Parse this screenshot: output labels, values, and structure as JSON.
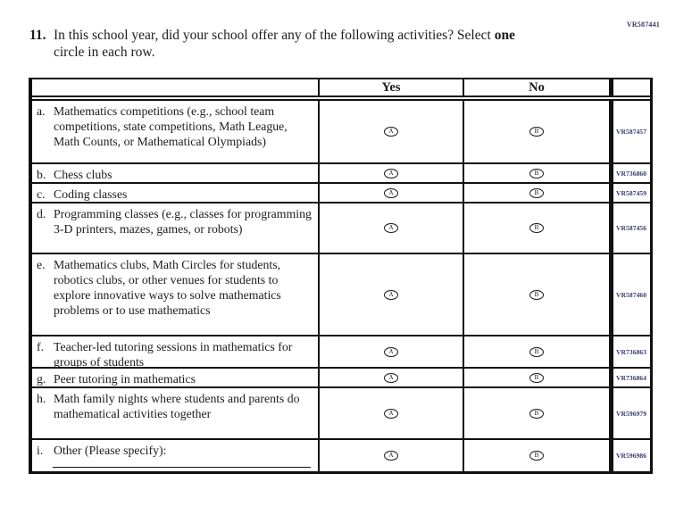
{
  "page": {
    "question_number": "11.",
    "question_line1": "In this school year, did your school offer any of the following activities? Select",
    "question_bold_word": "one",
    "question_line2": "circle in each row.",
    "form_code": "VR587441"
  },
  "colors": {
    "vr_code_text": "#333a6b",
    "table_border": "#111111",
    "body_text": "#1c1c1c"
  },
  "table": {
    "header": {
      "item": "",
      "yes": "Yes",
      "no": "No",
      "code": ""
    },
    "bubble_yes_letter": "A",
    "bubble_no_letter": "B",
    "rows": [
      {
        "letter": "a.",
        "text": "Mathematics competitions (e.g., school team competitions, state competitions, Math League, Math Counts, or Mathematical Olympiads)",
        "code": "VR587457"
      },
      {
        "letter": "b.",
        "text": "Chess clubs",
        "code": "VR736860"
      },
      {
        "letter": "c.",
        "text": "Coding classes",
        "code": "VR587459"
      },
      {
        "letter": "d.",
        "text": "Programming classes (e.g., classes for programming 3-D printers, mazes, games, or robots)",
        "code": "VR587456"
      },
      {
        "letter": "e.",
        "text": "Mathematics clubs, Math Circles for students, robotics clubs, or other venues for students to explore innovative ways to solve mathematics problems or to use mathematics",
        "code": "VR587460"
      },
      {
        "letter": "f.",
        "text": "Teacher-led tutoring sessions in mathematics for groups of students",
        "code": "VR736863"
      },
      {
        "letter": "g.",
        "text": "Peer tutoring in mathematics",
        "code": "VR736864"
      },
      {
        "letter": "h.",
        "text": "Math family nights where students and parents do mathematical activities together",
        "code": "VR596979"
      },
      {
        "letter": "i.",
        "text": "Other (Please specify):",
        "code": "VR596986",
        "has_write_in_line": true
      }
    ]
  }
}
